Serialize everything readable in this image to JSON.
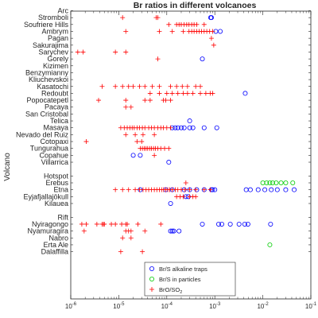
{
  "chart_data": {
    "type": "scatter",
    "title": "Br ratios in different volcanoes",
    "xlabel": "",
    "ylabel": "Volcano",
    "xscale": "log",
    "xlim": [
      1e-06,
      0.1
    ],
    "x_ticks": [
      {
        "base": "10",
        "exp": "-6",
        "value": 1e-06
      },
      {
        "base": "10",
        "exp": "-5",
        "value": 1e-05
      },
      {
        "base": "10",
        "exp": "-4",
        "value": 0.0001
      },
      {
        "base": "10",
        "exp": "-3",
        "value": 0.001
      },
      {
        "base": "10",
        "exp": "-2",
        "value": 0.01
      },
      {
        "base": "10",
        "exp": "-1",
        "value": 0.1
      }
    ],
    "categories": [
      "Arc",
      "Stromboli",
      "Soufriere Hills",
      "Ambrym",
      "Pagan",
      "Sakurajima",
      "Sarychev",
      "Gorely",
      "Kizimen",
      "Benzymianny",
      "Kliuchevskoi",
      "Kasatochi",
      "Redoubt",
      "Popocatepetl",
      "Pacaya",
      "San Cristobal",
      "Telica",
      "Masaya",
      "Nevado del Ruiz",
      "Cotopaxi",
      "Tungurahua",
      "Copahue",
      "Villarrica",
      "",
      "Hotspot",
      "Erebus",
      "Etna",
      "Eyjafjallajökull",
      "Kilauea",
      "",
      "Rift",
      "Nyiragongo",
      "Nyamuragira",
      "Nabro",
      "Erta Ale",
      "Dalaffilla"
    ],
    "legend": {
      "position": "bottom-center",
      "entries": [
        {
          "label": "Br/S alkaline traps",
          "marker": "circle",
          "color": "#0000ff"
        },
        {
          "label": "Br/S in particles",
          "marker": "circle",
          "color": "#00cc00"
        },
        {
          "label_main": "BrO/SO",
          "label_sub": "2",
          "marker": "plus",
          "color": "#ff0000"
        }
      ]
    },
    "series": [
      {
        "marker": "circle",
        "color": "#0000ff",
        "points": [
          {
            "y": "Stromboli",
            "x": [
              0.00082,
              0.00085
            ]
          },
          {
            "y": "Ambrym",
            "x": [
              0.00105,
              0.0013
            ]
          },
          {
            "y": "Gorely",
            "x": [
              0.00055
            ]
          },
          {
            "y": "Redoubt",
            "x": [
              0.0043
            ]
          },
          {
            "y": "Telica",
            "x": [
              0.0003
            ]
          },
          {
            "y": "Masaya",
            "x": [
              0.00013,
              0.00015,
              0.00017,
              0.0002,
              0.00023,
              0.0003,
              0.00035,
              0.0006,
              0.0011
            ]
          },
          {
            "y": "Copahue",
            "x": [
              2e-05,
              2.8e-05
            ]
          },
          {
            "y": "Villarrica",
            "x": [
              0.00011
            ]
          },
          {
            "y": "Etna",
            "x": [
              2.8e-05,
              9.5e-05,
              0.00013,
              0.00023,
              0.0003,
              0.00042,
              0.0006,
              0.00085,
              0.0009,
              0.001,
              0.0045,
              0.0055,
              0.008,
              0.011,
              0.015,
              0.02,
              0.03,
              0.045
            ]
          },
          {
            "y": "Eyjafjallajökull",
            "x": [
              0.00025,
              0.00028
            ]
          },
          {
            "y": "Kilauea",
            "x": [
              0.00012
            ]
          },
          {
            "y": "Nyiragongo",
            "x": [
              0.00055,
              0.0012,
              0.0014,
              0.0021,
              0.0032,
              0.0042,
              0.0049,
              0.0145
            ]
          },
          {
            "y": "Nyamuragira",
            "x": [
              0.00012,
              0.00013,
              0.00014,
              0.00018
            ]
          }
        ]
      },
      {
        "marker": "circle",
        "color": "#00cc00",
        "points": [
          {
            "y": "Erebus",
            "x": [
              0.01,
              0.012,
              0.014,
              0.016,
              0.019,
              0.024,
              0.03,
              0.042
            ]
          },
          {
            "y": "Erta Ale",
            "x": [
              0.014
            ]
          }
        ]
      },
      {
        "marker": "plus",
        "color": "#ff0000",
        "points": [
          {
            "y": "Stromboli",
            "x": [
              1.2e-05,
              6e-05,
              6.5e-05
            ]
          },
          {
            "y": "Soufriere Hills",
            "x": [
              0.00011,
              0.00016,
              0.00018,
              0.0002,
              0.00023,
              0.00026,
              0.00029,
              0.00033,
              0.00037,
              0.00042,
              0.0006
            ]
          },
          {
            "y": "Ambrym",
            "x": [
              1.4e-05,
              7e-05,
              0.00013,
              0.00022,
              0.00029,
              0.00033,
              0.00037,
              0.00042,
              0.00047,
              0.00053,
              0.0006,
              0.00068,
              0.00078,
              0.0009
            ]
          },
          {
            "y": "Pagan",
            "x": [
              0.00085
            ]
          },
          {
            "y": "Sakurajima",
            "x": [
              0.00095
            ]
          },
          {
            "y": "Sarychev",
            "x": [
              1.4e-06,
              1.8e-06,
              8.5e-06,
              1.4e-05
            ]
          },
          {
            "y": "Gorely",
            "x": [
              6.5e-05
            ]
          },
          {
            "y": "Kasatochi",
            "x": [
              4.5e-06,
              8.5e-06,
              1.2e-05,
              1.6e-05,
              2e-05,
              2.7e-05,
              3.5e-05,
              5e-05,
              7e-05,
              0.00012,
              0.00016,
              0.00021,
              0.00027,
              0.0004,
              0.0005
            ]
          },
          {
            "y": "Redoubt",
            "x": [
              4.5e-05,
              7e-05,
              0.0001,
              0.00013,
              0.00017,
              0.00022,
              0.00027,
              0.00035,
              0.0005,
              0.00065,
              0.0008,
              0.0009
            ]
          },
          {
            "y": "Popocatepetl",
            "x": [
              3.8e-06,
              1.4e-05,
              3.5e-05,
              4.5e-05,
              8.5e-05,
              9.5e-05,
              0.00012
            ]
          },
          {
            "y": "Pacaya",
            "x": [
              1.4e-05,
              1.8e-05
            ]
          },
          {
            "y": "Masaya",
            "x": [
              1.1e-05,
              1.3e-05,
              1.5e-05,
              1.7e-05,
              1.9e-05,
              2.1e-05,
              2.4e-05,
              2.7e-05,
              3.1e-05,
              3.5e-05,
              4.2e-05,
              4.8e-05,
              5.5e-05,
              6.5e-05,
              7.5e-05,
              8.5e-05,
              0.0001,
              0.00012
            ]
          },
          {
            "y": "Nevado del Ruiz",
            "x": [
              1.4e-05,
              2.2e-05,
              3.2e-05,
              5.5e-05
            ]
          },
          {
            "y": "Cotopaxi",
            "x": [
              2.1e-06,
              2.4e-05,
              3e-05
            ]
          },
          {
            "y": "Tungurahua",
            "x": [
              2.8e-05,
              3.1e-05,
              3.4e-05,
              3.7e-05,
              4e-05,
              4.4e-05,
              4.8e-05,
              5.3e-05,
              5.8e-05,
              6.5e-05,
              7.5e-05,
              9e-05,
              0.00011
            ]
          },
          {
            "y": "Copahue",
            "x": [
              5.5e-05
            ]
          },
          {
            "y": "Erebus",
            "x": [
              0.00025
            ]
          },
          {
            "y": "Etna",
            "x": [
              8.5e-06,
              1.2e-05,
              1.6e-05,
              2.2e-05,
              2.7e-05,
              3.2e-05,
              3.7e-05,
              4.2e-05,
              4.8e-05,
              5.5e-05,
              6.2e-05,
              7e-05,
              7.8e-05,
              8.6e-05,
              9.5e-05,
              0.000105,
              0.000115,
              0.00013,
              0.00015,
              0.00017,
              0.0002,
              0.00024,
              0.0003,
              0.0004,
              0.0006,
              0.0008
            ]
          },
          {
            "y": "Eyjafjallajökull",
            "x": [
              0.00016,
              0.00019,
              0.00022,
              0.0003,
              0.00035,
              0.0004
            ]
          },
          {
            "y": "Nyiragongo",
            "x": [
              1.7e-06,
              2.1e-06,
              3.5e-06,
              4.5e-06,
              4.8e-06,
              5e-06,
              7e-06,
              8.5e-06,
              1.15e-05,
              1.4e-05,
              1.5e-05,
              2.5e-05,
              7.5e-05
            ]
          },
          {
            "y": "Nyamuragira",
            "x": [
              1.9e-06,
              1.4e-05,
              1.6e-05,
              1.8e-05,
              3.5e-05
            ]
          },
          {
            "y": "Nabro",
            "x": [
              1.2e-05,
              1.8e-05
            ]
          },
          {
            "y": "Dalaffilla",
            "x": [
              1.1e-05,
              3.1e-05
            ]
          }
        ]
      }
    ]
  }
}
